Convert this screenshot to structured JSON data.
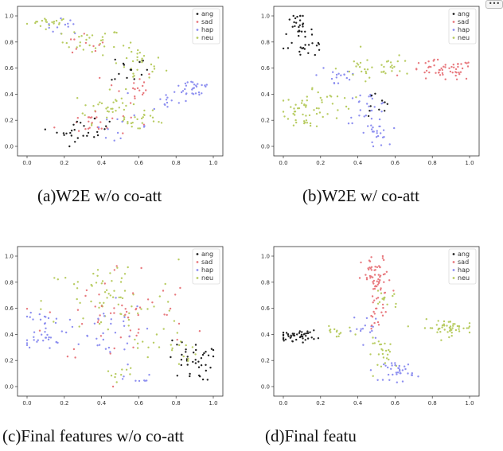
{
  "legend_labels": [
    "ang",
    "sad",
    "hap",
    "neu"
  ],
  "colors": {
    "ang": "#222222",
    "sad": "#e8797e",
    "hap": "#8d8ff0",
    "neu": "#b8cc62"
  },
  "more_icon": "ellipsis-icon",
  "more_label": "•••",
  "chart_data": [
    {
      "type": "scatter",
      "title": "(a)W2E w/o co-att",
      "xlim": [
        0,
        1
      ],
      "ylim": [
        0,
        1
      ],
      "xticks": [
        "0.0",
        "0.2",
        "0.4",
        "0.6",
        "0.8",
        "1.0"
      ],
      "yticks": [
        "0.0",
        "0.2",
        "0.4",
        "0.6",
        "0.8",
        "1.0"
      ],
      "legend_position": "top-right",
      "clusters": [
        {
          "cls": "neu",
          "x": 0.12,
          "y": 0.95,
          "sx": 0.06,
          "sy": 0.02,
          "n": 20
        },
        {
          "cls": "hap",
          "x": 0.2,
          "y": 0.92,
          "sx": 0.05,
          "sy": 0.03,
          "n": 12
        },
        {
          "cls": "neu",
          "x": 0.35,
          "y": 0.8,
          "sx": 0.08,
          "sy": 0.05,
          "n": 30
        },
        {
          "cls": "sad",
          "x": 0.3,
          "y": 0.78,
          "sx": 0.06,
          "sy": 0.05,
          "n": 10
        },
        {
          "cls": "neu",
          "x": 0.6,
          "y": 0.62,
          "sx": 0.07,
          "sy": 0.07,
          "n": 30
        },
        {
          "cls": "ang",
          "x": 0.55,
          "y": 0.6,
          "sx": 0.05,
          "sy": 0.06,
          "n": 14
        },
        {
          "cls": "sad",
          "x": 0.55,
          "y": 0.45,
          "sx": 0.07,
          "sy": 0.07,
          "n": 18
        },
        {
          "cls": "hap",
          "x": 0.9,
          "y": 0.45,
          "sx": 0.05,
          "sy": 0.04,
          "n": 28
        },
        {
          "cls": "hap",
          "x": 0.75,
          "y": 0.35,
          "sx": 0.06,
          "sy": 0.05,
          "n": 14
        },
        {
          "cls": "neu",
          "x": 0.45,
          "y": 0.3,
          "sx": 0.1,
          "sy": 0.06,
          "n": 35
        },
        {
          "cls": "sad",
          "x": 0.35,
          "y": 0.18,
          "sx": 0.1,
          "sy": 0.05,
          "n": 26
        },
        {
          "cls": "ang",
          "x": 0.3,
          "y": 0.12,
          "sx": 0.07,
          "sy": 0.04,
          "n": 26
        },
        {
          "cls": "neu",
          "x": 0.6,
          "y": 0.2,
          "sx": 0.08,
          "sy": 0.05,
          "n": 20
        },
        {
          "cls": "hap",
          "x": 0.5,
          "y": 0.15,
          "sx": 0.08,
          "sy": 0.04,
          "n": 12
        }
      ]
    },
    {
      "type": "scatter",
      "title": "(b)W2E w/ co-att",
      "xlim": [
        0,
        1
      ],
      "ylim": [
        0,
        1
      ],
      "xticks": [
        "0.0",
        "0.2",
        "0.4",
        "0.6",
        "0.8",
        "1.0"
      ],
      "yticks": [
        "0.0",
        "0.2",
        "0.4",
        "0.6",
        "0.8",
        "1.0"
      ],
      "legend_position": "top-right",
      "clusters": [
        {
          "cls": "ang",
          "x": 0.08,
          "y": 0.88,
          "sx": 0.04,
          "sy": 0.07,
          "n": 35
        },
        {
          "cls": "ang",
          "x": 0.15,
          "y": 0.75,
          "sx": 0.04,
          "sy": 0.04,
          "n": 10
        },
        {
          "cls": "hap",
          "x": 0.3,
          "y": 0.55,
          "sx": 0.06,
          "sy": 0.06,
          "n": 18
        },
        {
          "cls": "neu",
          "x": 0.45,
          "y": 0.6,
          "sx": 0.08,
          "sy": 0.05,
          "n": 20
        },
        {
          "cls": "sad",
          "x": 0.85,
          "y": 0.58,
          "sx": 0.09,
          "sy": 0.04,
          "n": 55
        },
        {
          "cls": "neu",
          "x": 0.6,
          "y": 0.6,
          "sx": 0.07,
          "sy": 0.04,
          "n": 18
        },
        {
          "cls": "neu",
          "x": 0.12,
          "y": 0.28,
          "sx": 0.06,
          "sy": 0.07,
          "n": 45
        },
        {
          "cls": "hap",
          "x": 0.45,
          "y": 0.3,
          "sx": 0.06,
          "sy": 0.06,
          "n": 26
        },
        {
          "cls": "hap",
          "x": 0.5,
          "y": 0.1,
          "sx": 0.03,
          "sy": 0.05,
          "n": 22
        },
        {
          "cls": "ang",
          "x": 0.5,
          "y": 0.3,
          "sx": 0.05,
          "sy": 0.06,
          "n": 10
        },
        {
          "cls": "neu",
          "x": 0.25,
          "y": 0.35,
          "sx": 0.06,
          "sy": 0.06,
          "n": 15
        }
      ]
    },
    {
      "type": "scatter",
      "title": "(c)Final features w/o co-att",
      "xlim": [
        0,
        1
      ],
      "ylim": [
        0,
        1
      ],
      "xticks": [
        "0.0",
        "0.2",
        "0.4",
        "0.6",
        "0.8",
        "1.0"
      ],
      "yticks": [
        "0.0",
        "0.2",
        "0.4",
        "0.6",
        "0.8",
        "1.0"
      ],
      "legend_position": "top-right",
      "clusters": [
        {
          "cls": "neu",
          "x": 0.45,
          "y": 0.65,
          "sx": 0.18,
          "sy": 0.16,
          "n": 70
        },
        {
          "cls": "sad",
          "x": 0.5,
          "y": 0.55,
          "sx": 0.2,
          "sy": 0.2,
          "n": 55
        },
        {
          "cls": "hap",
          "x": 0.1,
          "y": 0.45,
          "sx": 0.06,
          "sy": 0.08,
          "n": 40
        },
        {
          "cls": "hap",
          "x": 0.4,
          "y": 0.4,
          "sx": 0.12,
          "sy": 0.12,
          "n": 28
        },
        {
          "cls": "ang",
          "x": 0.88,
          "y": 0.2,
          "sx": 0.06,
          "sy": 0.08,
          "n": 40
        },
        {
          "cls": "neu",
          "x": 0.75,
          "y": 0.3,
          "sx": 0.08,
          "sy": 0.08,
          "n": 22
        },
        {
          "cls": "neu",
          "x": 0.5,
          "y": 0.1,
          "sx": 0.04,
          "sy": 0.03,
          "n": 10
        },
        {
          "cls": "hap",
          "x": 0.6,
          "y": 0.05,
          "sx": 0.04,
          "sy": 0.02,
          "n": 8
        }
      ]
    },
    {
      "type": "scatter",
      "title": "(d)Final featu",
      "xlim": [
        0,
        1
      ],
      "ylim": [
        0,
        1
      ],
      "xticks": [
        "0.0",
        "0.2",
        "0.4",
        "0.6",
        "0.8",
        "1.0"
      ],
      "yticks": [
        "0.0",
        "0.2",
        "0.4",
        "0.6",
        "0.8",
        "1.0"
      ],
      "legend_position": "top-right",
      "clusters": [
        {
          "cls": "sad",
          "x": 0.5,
          "y": 0.82,
          "sx": 0.04,
          "sy": 0.09,
          "n": 60
        },
        {
          "cls": "neu",
          "x": 0.55,
          "y": 0.68,
          "sx": 0.04,
          "sy": 0.05,
          "n": 14
        },
        {
          "cls": "ang",
          "x": 0.08,
          "y": 0.39,
          "sx": 0.05,
          "sy": 0.02,
          "n": 45
        },
        {
          "cls": "neu",
          "x": 0.28,
          "y": 0.42,
          "sx": 0.05,
          "sy": 0.02,
          "n": 14
        },
        {
          "cls": "neu",
          "x": 0.88,
          "y": 0.45,
          "sx": 0.07,
          "sy": 0.03,
          "n": 50
        },
        {
          "cls": "hap",
          "x": 0.45,
          "y": 0.45,
          "sx": 0.04,
          "sy": 0.05,
          "n": 15
        },
        {
          "cls": "neu",
          "x": 0.55,
          "y": 0.25,
          "sx": 0.05,
          "sy": 0.06,
          "n": 25
        },
        {
          "cls": "hap",
          "x": 0.62,
          "y": 0.12,
          "sx": 0.04,
          "sy": 0.04,
          "n": 35
        },
        {
          "cls": "sad",
          "x": 0.5,
          "y": 0.55,
          "sx": 0.03,
          "sy": 0.05,
          "n": 18
        }
      ]
    }
  ],
  "captions": [
    "(a)W2E w/o co-att",
    "(b)W2E w/ co-att",
    "(c)Final features w/o co-att",
    "(d)Final featu"
  ]
}
